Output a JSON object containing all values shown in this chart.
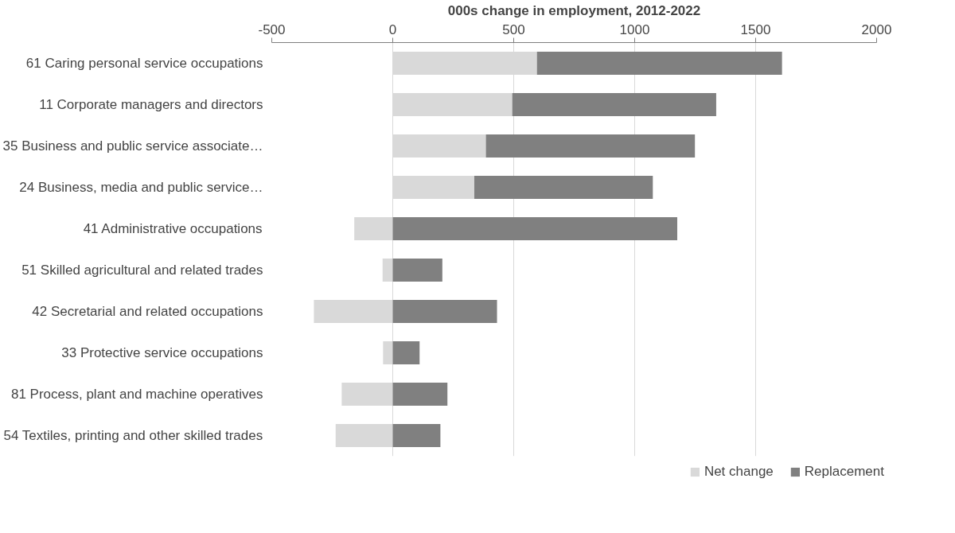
{
  "chart_data": {
    "type": "bar",
    "orientation": "horizontal",
    "stacked": true,
    "xlabel": "000s change in employment, 2012-2022",
    "categories": [
      "61 Caring personal service occupations",
      "11 Corporate managers and directors",
      "35 Business and public service associate…",
      "24 Business, media and public service…",
      "41 Administrative occupations",
      "51 Skilled agricultural and related trades",
      "42 Secretarial and related occupations",
      "33 Protective service occupations",
      "81 Process, plant and machine operatives",
      "54 Textiles, printing and other skilled trades"
    ],
    "series": [
      {
        "name": "Net change",
        "color": "#d9d9d9",
        "values": [
          596,
          494,
          385,
          337,
          -159,
          -42,
          -326,
          -40,
          -211,
          -236
        ]
      },
      {
        "name": "Replacement",
        "color": "#808080",
        "values": [
          1013,
          843,
          864,
          738,
          1176,
          205,
          431,
          111,
          226,
          197
        ]
      }
    ],
    "xlim": [
      -500,
      2000
    ],
    "xticks": [
      -500,
      0,
      500,
      1000,
      1500,
      2000
    ],
    "grid": "x",
    "legend": "bottom"
  }
}
